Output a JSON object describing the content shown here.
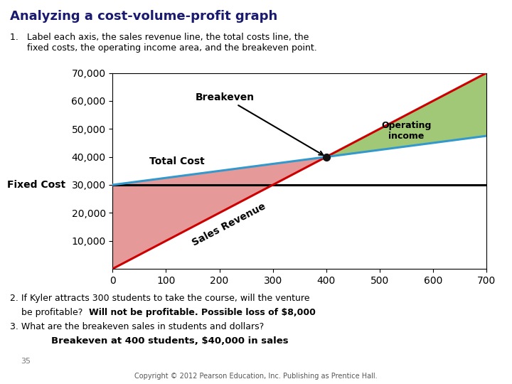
{
  "chart_data": {
    "type": "line",
    "title": "Analyzing a cost-volume-profit graph",
    "x": [
      0,
      400,
      700
    ],
    "series": [
      {
        "name": "Fixed Cost",
        "color": "#000000",
        "values": [
          30000,
          30000,
          30000
        ]
      },
      {
        "name": "Sales Revenue",
        "color": "#cc0000",
        "values": [
          0,
          40000,
          70000
        ]
      },
      {
        "name": "Total Cost",
        "color": "#3399cc",
        "values": [
          30000,
          40000,
          47500
        ]
      }
    ],
    "areas": [
      {
        "color": "#e08080",
        "x": [
          0,
          400
        ],
        "lower": [
          0,
          40000
        ],
        "upper": [
          30000,
          40000
        ]
      },
      {
        "name": "Operating\nincome",
        "color": "#88bb55",
        "x": [
          400,
          700
        ],
        "lower": [
          40000,
          47500
        ],
        "upper": [
          40000,
          70000
        ]
      }
    ],
    "annotations": [
      {
        "text": "Breakeven",
        "x": 400,
        "y": 40000,
        "color": "#111111"
      }
    ],
    "xlim": [
      0,
      700
    ],
    "ylim": [
      0,
      70000
    ],
    "xticks": [
      0,
      100,
      200,
      300,
      400,
      500,
      600,
      700
    ],
    "yticks": [
      {
        "value": 10000,
        "label": "10,000"
      },
      {
        "value": 20000,
        "label": "20,000"
      },
      {
        "value": 30000,
        "label": "30,000"
      },
      {
        "value": 40000,
        "label": "40,000"
      },
      {
        "value": 50000,
        "label": "50,000"
      },
      {
        "value": 60000,
        "label": "60,000"
      },
      {
        "value": 70000,
        "label": "70,000"
      }
    ],
    "grid": false,
    "notes": [
      {
        "text": "1.   Label each axis, the sales revenue line, the total costs line, the\n      fixed costs, the operating income area, and the breakeven point."
      },
      {
        "text": "2. If Kyler attracts 300 students to take the course, will the venture"
      },
      {
        "text": "    be profitable?  ",
        "answer": "Will not be profitable. Possible loss of $8,000"
      },
      {
        "text": "3. What are the breakeven sales in students and dollars?"
      },
      {
        "answer": "Breakeven at 400 students, $40,000 in sales"
      }
    ],
    "page_number": "35",
    "copyright": "Copyright © 2012 Pearson Education, Inc. Publishing as Prentice Hall."
  }
}
